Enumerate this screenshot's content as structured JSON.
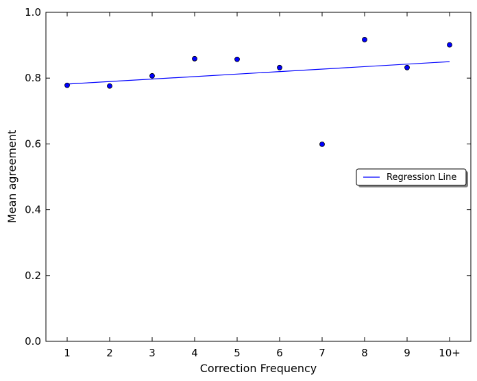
{
  "chart_data": {
    "type": "scatter",
    "xlabel": "Correction Frequency",
    "ylabel": "Mean agreement",
    "categories": [
      "1",
      "2",
      "3",
      "4",
      "5",
      "6",
      "7",
      "8",
      "9",
      "10+"
    ],
    "points": [
      0.778,
      0.776,
      0.807,
      0.859,
      0.857,
      0.832,
      0.599,
      0.917,
      0.832,
      0.901
    ],
    "regression": {
      "name": "Regression Line",
      "start": 0.782,
      "end": 0.85,
      "color": "#0000ff"
    },
    "point_color": "#0000ff",
    "ylim": [
      0.0,
      1.0
    ],
    "yticks": [
      "0.0",
      "0.2",
      "0.4",
      "0.6",
      "0.8",
      "1.0"
    ],
    "grid": false,
    "legend_position": "center-right"
  }
}
